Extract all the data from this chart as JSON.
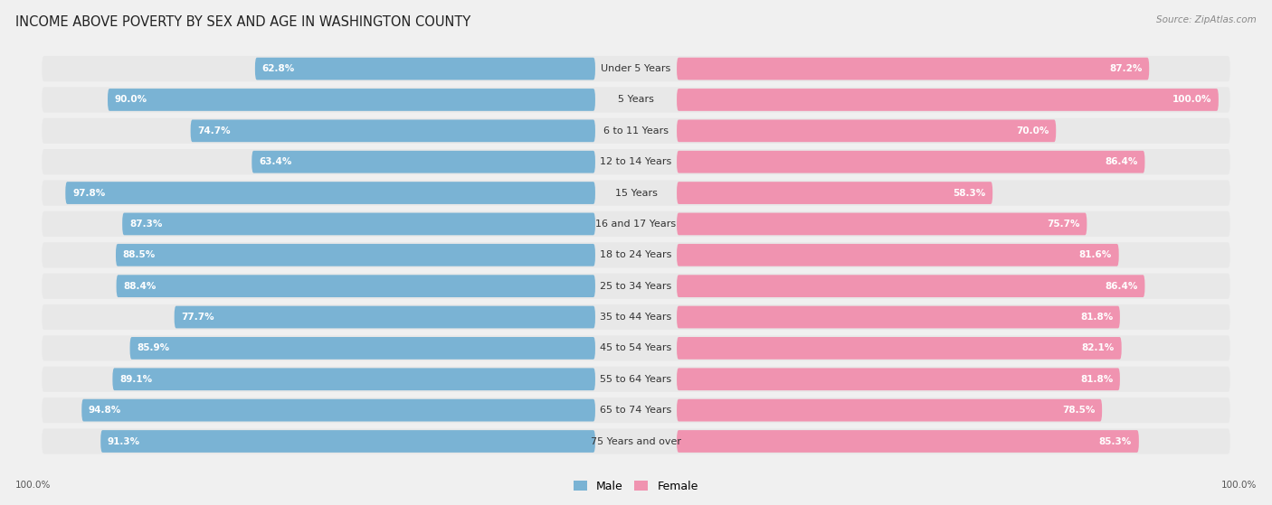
{
  "title": "INCOME ABOVE POVERTY BY SEX AND AGE IN WASHINGTON COUNTY",
  "source": "Source: ZipAtlas.com",
  "categories": [
    "Under 5 Years",
    "5 Years",
    "6 to 11 Years",
    "12 to 14 Years",
    "15 Years",
    "16 and 17 Years",
    "18 to 24 Years",
    "25 to 34 Years",
    "35 to 44 Years",
    "45 to 54 Years",
    "55 to 64 Years",
    "65 to 74 Years",
    "75 Years and over"
  ],
  "male_values": [
    62.8,
    90.0,
    74.7,
    63.4,
    97.8,
    87.3,
    88.5,
    88.4,
    77.7,
    85.9,
    89.1,
    94.8,
    91.3
  ],
  "female_values": [
    87.2,
    100.0,
    70.0,
    86.4,
    58.3,
    75.7,
    81.6,
    86.4,
    81.8,
    82.1,
    81.8,
    78.5,
    85.3
  ],
  "male_color": "#7ab3d4",
  "female_color": "#f093b0",
  "male_light_color": "#b8d4e8",
  "female_light_color": "#f8c0d0",
  "male_label": "Male",
  "female_label": "Female",
  "background_color": "#f0f0f0",
  "row_bg_color": "#e8e8e8",
  "title_fontsize": 10.5,
  "label_fontsize": 8.0,
  "value_fontsize": 7.5,
  "legend_fontsize": 9,
  "bottom_label": "100.0%",
  "max_value": 100.0
}
